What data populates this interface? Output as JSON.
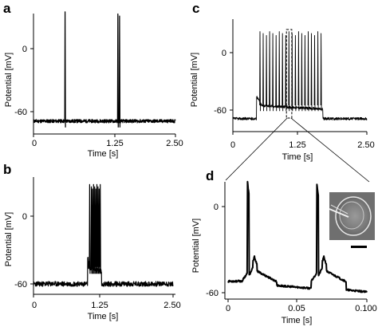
{
  "chart_data": [
    {
      "panel": "a",
      "type": "line",
      "xlabel": "Time [s]",
      "ylabel": "Potential [mV]",
      "xticks": [
        "0",
        "1.25",
        "2.50"
      ],
      "yticks": [
        "0",
        "-60"
      ],
      "xlim": [
        0,
        2.5
      ],
      "ylim": [
        -75,
        40
      ],
      "baseline_mv": -69,
      "spike_times_s": [
        0.55,
        1.48,
        1.51
      ],
      "spike_peak_mv": 35,
      "depolarization": null
    },
    {
      "panel": "b",
      "type": "line",
      "xlabel": "Time [s]",
      "ylabel": "Potential [mV]",
      "xticks": [
        "0",
        "1.25",
        "2.50"
      ],
      "yticks": [
        "0",
        "-60"
      ],
      "xlim": [
        0,
        2.5
      ],
      "ylim": [
        -70,
        35
      ],
      "baseline_mv": -60,
      "spike_times_s": [
        1.0,
        1.03,
        1.05,
        1.07,
        1.09,
        1.11,
        1.13,
        1.15,
        1.17,
        1.19
      ],
      "spike_peak_mv": 28,
      "depolarization": {
        "start_s": 0.97,
        "end_s": 1.22,
        "plateau_mv": -45
      }
    },
    {
      "panel": "c",
      "type": "line",
      "xlabel": "Time [s]",
      "ylabel": "Potential [mV]",
      "xticks": [
        "0",
        "1.25",
        "2.50"
      ],
      "yticks": [
        "0",
        "-60"
      ],
      "xlim": [
        0,
        2.5
      ],
      "ylim": [
        -75,
        40
      ],
      "baseline_mv": -69,
      "spike_times_s": [
        0.5,
        0.56,
        0.62,
        0.68,
        0.74,
        0.8,
        0.86,
        0.92,
        0.98,
        1.04,
        1.1,
        1.16,
        1.22,
        1.28,
        1.34,
        1.4,
        1.46,
        1.52,
        1.58,
        1.64
      ],
      "spike_peak_mv": 22,
      "depolarization": {
        "start_s": 0.44,
        "end_s": 1.68,
        "plateau_mv": -55
      },
      "zoom_box_s": [
        1.0,
        1.1
      ]
    },
    {
      "panel": "d",
      "type": "line",
      "xlabel": "Time [s]",
      "ylabel": "Potential [mV]",
      "xticks": [
        "0",
        "0.05",
        "0.100"
      ],
      "yticks": [
        "0",
        "-60"
      ],
      "xlim": [
        0,
        0.1
      ],
      "ylim": [
        -68,
        25
      ],
      "baseline_mv": -56,
      "spikes": [
        {
          "t_s": 0.014,
          "peak_mv": 17,
          "shoulder_t_s": 0.019,
          "shoulder_mv": -35
        },
        {
          "t_s": 0.064,
          "peak_mv": 16,
          "shoulder_t_s": 0.069,
          "shoulder_mv": -35
        }
      ],
      "inset_image": "neuron-micrograph"
    }
  ]
}
